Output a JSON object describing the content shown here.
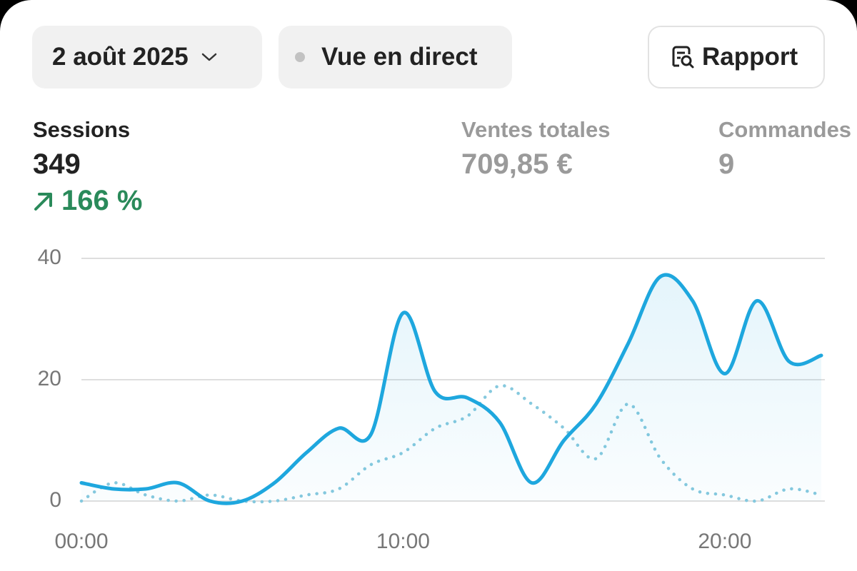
{
  "header": {
    "date_button": "2 août 2025",
    "live_button": "Vue en direct",
    "report_button": "Rapport"
  },
  "metrics": [
    {
      "label": "Sessions",
      "value": "349",
      "change": "166 %"
    },
    {
      "label": "Ventes totales",
      "value": "709,85 €"
    },
    {
      "label": "Commandes",
      "value": "9"
    }
  ],
  "chart_data": {
    "type": "line",
    "x": [
      0,
      1,
      2,
      3,
      4,
      5,
      6,
      7,
      8,
      9,
      10,
      11,
      12,
      13,
      14,
      15,
      16,
      17,
      18,
      19,
      20,
      21,
      22,
      23
    ],
    "series": [
      {
        "color": "#1ea7de",
        "style": "solid",
        "area": true,
        "values": [
          3,
          2,
          2,
          3,
          0,
          0,
          3,
          8,
          12,
          11,
          31,
          18,
          17,
          13,
          3,
          10,
          16,
          26,
          37,
          33,
          21,
          33,
          23,
          24
        ]
      },
      {
        "color": "#86c9de",
        "style": "dotted",
        "values": [
          0,
          3,
          1,
          0,
          1,
          0,
          0,
          1,
          2,
          6,
          8,
          12,
          14,
          19,
          16,
          12,
          7,
          16,
          7,
          2,
          1,
          0,
          2,
          1
        ]
      }
    ],
    "xlim": [
      0,
      23
    ],
    "ylim": [
      0,
      40
    ],
    "xticks": [
      {
        "value": 0,
        "label": "00:00"
      },
      {
        "value": 10,
        "label": "10:00"
      },
      {
        "value": 20,
        "label": "20:00"
      }
    ],
    "yticks": [
      0,
      20,
      40
    ],
    "grid": true
  }
}
